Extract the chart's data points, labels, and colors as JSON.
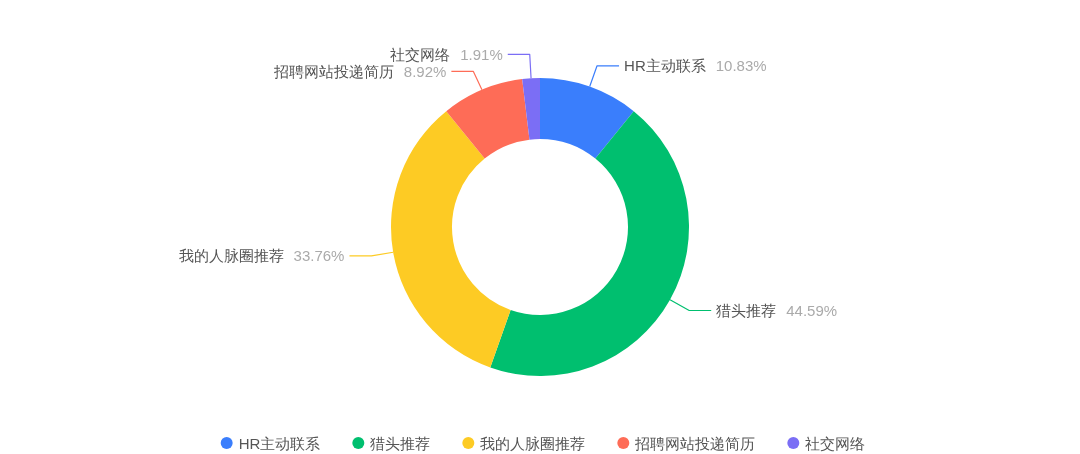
{
  "chart_data": {
    "type": "donut",
    "categories": [
      "HR主动联系",
      "猎头推荐",
      "我的人脉圈推荐",
      "招聘网站投递简历",
      "社交网络"
    ],
    "values": [
      10.83,
      44.59,
      33.76,
      8.92,
      1.91
    ],
    "value_labels": [
      "10.83%",
      "44.59%",
      "33.76%",
      "8.92%",
      "1.91%"
    ],
    "colors": [
      "#3a7efc",
      "#00bf6f",
      "#fdcb24",
      "#fe6c57",
      "#7b6ef5"
    ],
    "legend": "bottom"
  }
}
